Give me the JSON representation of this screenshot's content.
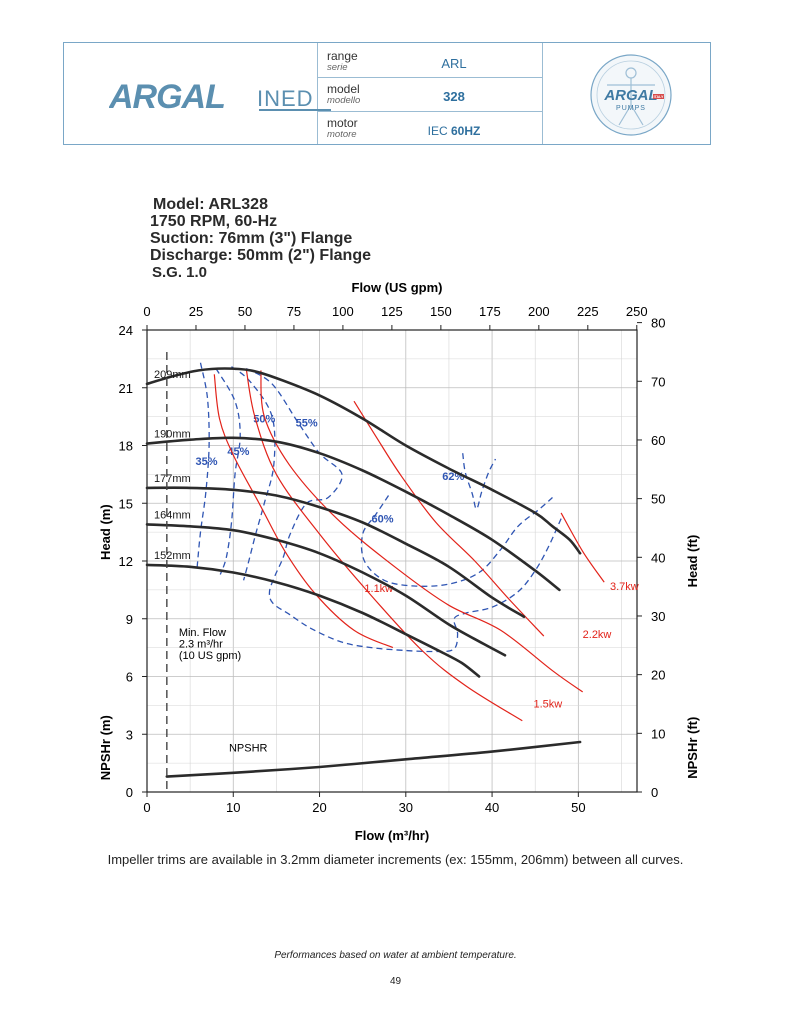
{
  "header": {
    "logo_text": "ARGAL",
    "logo_suffix": "INED",
    "range_label": "range",
    "range_label_it": "serie",
    "range_value": "ARL",
    "model_label": "model",
    "model_label_it": "modello",
    "model_value": "328",
    "motor_label": "motor",
    "motor_label_it": "motore",
    "motor_value_prefix": "IEC",
    "motor_value_hz": "60HZ",
    "seal_text": "ARGAL",
    "seal_sub": "PUMPS",
    "seal_tag": "ITALY"
  },
  "specs": {
    "model": "Model: ARL328",
    "rpm": "1750 RPM, 60-Hz",
    "suction": "Suction: 76mm (3\") Flange",
    "discharge": "Discharge: 50mm (2\") Flange",
    "sg": "S.G. 1.0"
  },
  "chart_data": {
    "type": "line",
    "title": "Model: ARL328",
    "xlabel": "Flow (m³/hr)",
    "x2label": "Flow (US gpm)",
    "ylabel": "Head (m)",
    "y2label": "Head (ft)",
    "ylabel_lower": "NPSHr (m)",
    "y2label_lower": "NPSHr (ft)",
    "xlim": [
      0,
      56.8
    ],
    "ylim": [
      0,
      24
    ],
    "x_ticks": [
      0,
      10,
      20,
      30,
      40,
      50
    ],
    "x2_ticks": [
      0,
      25,
      50,
      75,
      100,
      125,
      150,
      175,
      200,
      225,
      250
    ],
    "y_ticks": [
      0,
      3,
      6,
      9,
      12,
      15,
      18,
      21,
      24
    ],
    "y2_head_ticks": [
      40,
      50,
      60,
      70,
      80
    ],
    "y2_npsh_ticks": [
      0,
      10,
      20,
      30
    ],
    "grid": true,
    "series": [
      {
        "name": "209mm",
        "x": [
          0,
          3,
          6,
          9,
          12,
          15,
          20,
          25,
          30,
          35,
          40,
          45,
          47,
          49,
          50.2
        ],
        "y": [
          21.2,
          21.6,
          21.9,
          22.0,
          21.9,
          21.5,
          20.6,
          19.4,
          18.0,
          16.8,
          15.7,
          14.5,
          13.8,
          13.1,
          12.4
        ]
      },
      {
        "name": "190mm",
        "x": [
          0,
          5,
          10,
          15,
          20,
          25,
          30,
          35,
          40,
          45,
          47.8
        ],
        "y": [
          18.1,
          18.3,
          18.4,
          18.2,
          17.6,
          16.7,
          15.6,
          14.4,
          13.1,
          11.5,
          10.5
        ]
      },
      {
        "name": "177mm",
        "x": [
          0,
          5,
          10,
          15,
          20,
          25,
          30,
          35,
          40,
          43.7
        ],
        "y": [
          15.8,
          15.8,
          15.7,
          15.4,
          14.8,
          14.0,
          12.9,
          11.7,
          10.1,
          9.1
        ]
      },
      {
        "name": "164mm",
        "x": [
          0,
          5,
          10,
          15,
          20,
          25,
          30,
          35,
          39,
          41.5
        ],
        "y": [
          13.9,
          13.8,
          13.6,
          13.1,
          12.4,
          11.4,
          10.2,
          8.7,
          7.7,
          7.1
        ]
      },
      {
        "name": "152mm",
        "x": [
          0,
          5,
          10,
          15,
          20,
          25,
          30,
          34,
          36.5,
          38.5
        ],
        "y": [
          11.8,
          11.7,
          11.4,
          10.9,
          10.2,
          9.3,
          8.2,
          7.3,
          6.7,
          6.0
        ]
      },
      {
        "name": "NPSHR",
        "x": [
          2.3,
          10,
          20,
          30,
          40,
          50.2
        ],
        "y": [
          0.8,
          1.0,
          1.3,
          1.7,
          2.1,
          2.6
        ]
      }
    ],
    "efficiency_labels": [
      "35%",
      "45%",
      "50%",
      "55%",
      "60%",
      "62%"
    ],
    "power_labels": [
      "1.1kw",
      "1.5kw",
      "2.2kw",
      "3.7kw"
    ],
    "min_flow": {
      "x": 2.3,
      "label1": "Min. Flow",
      "label2": "2.3 m³/hr",
      "label3": "(10 US gpm)"
    },
    "npshr_label": "NPSHR"
  },
  "caption": "Impeller trims are available in 3.2mm diameter increments (ex: 155mm, 206mm) between all curves.",
  "footnote": "Performances based on water at ambient temperature.",
  "page_number": "49"
}
